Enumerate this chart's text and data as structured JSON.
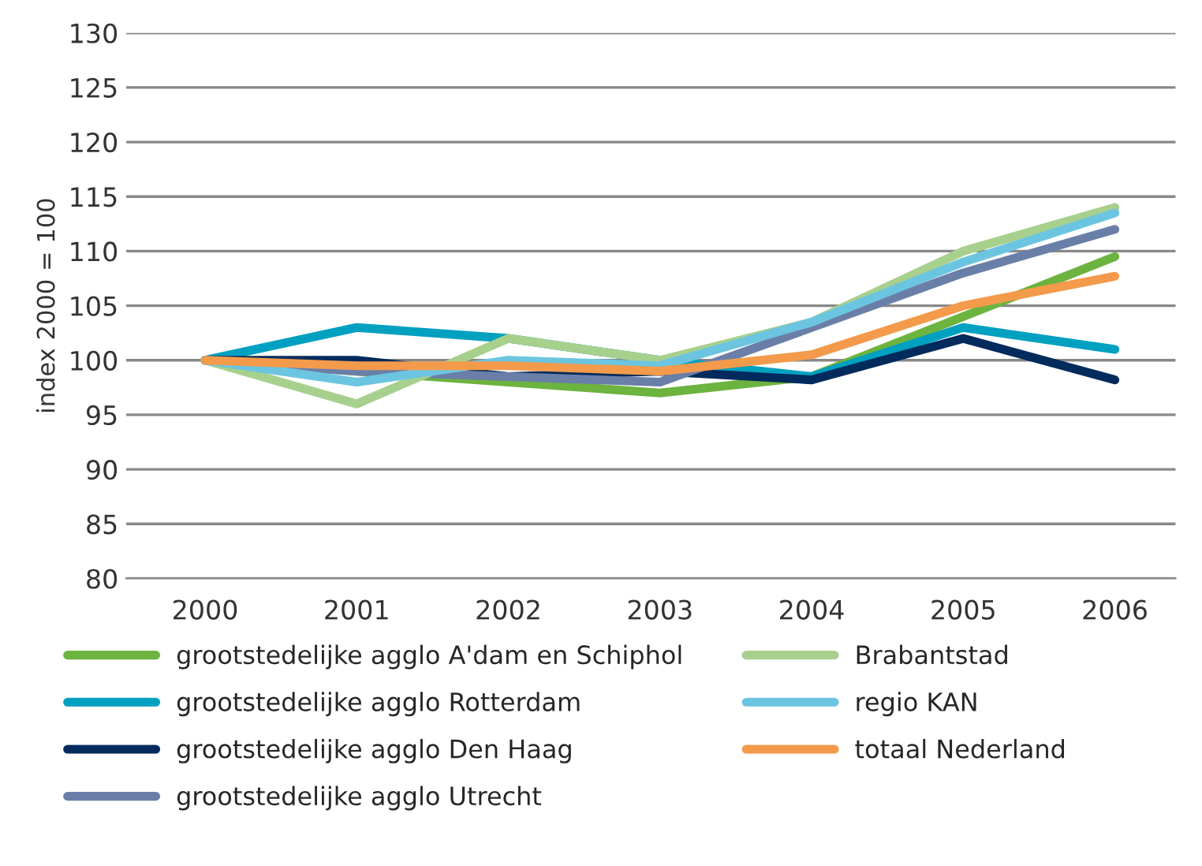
{
  "chart_data": {
    "type": "line",
    "ylabel": "index 2000 = 100",
    "categories": [
      "2000",
      "2001",
      "2002",
      "2003",
      "2004",
      "2005",
      "2006"
    ],
    "series": [
      {
        "name": "grootstedelijke agglo A'dam en Schiphol",
        "color": "#6db33f",
        "values": [
          100,
          99,
          98,
          97,
          98.5,
          104,
          109.5
        ]
      },
      {
        "name": "grootstedelijke agglo Rotterdam",
        "color": "#00a0c0",
        "values": [
          100,
          103,
          102,
          100,
          98.5,
          103,
          101
        ]
      },
      {
        "name": "grootstedelijke agglo Den Haag",
        "color": "#002b5c",
        "values": [
          100,
          100,
          98.5,
          99,
          98.2,
          102,
          98.2
        ]
      },
      {
        "name": "grootstedelijke agglo Utrecht",
        "color": "#6a7fa8",
        "values": [
          100,
          99,
          98.5,
          98,
          103,
          108,
          112
        ]
      },
      {
        "name": "Brabantstad",
        "color": "#a8d08d",
        "values": [
          100,
          96,
          102,
          100,
          103.5,
          110,
          114
        ]
      },
      {
        "name": "regio KAN",
        "color": "#6cc5e0",
        "values": [
          100,
          98,
          100,
          99.5,
          103.5,
          109,
          113.5
        ]
      },
      {
        "name": "totaal Nederland",
        "color": "#f39a4b",
        "values": [
          100,
          99.5,
          99.5,
          99,
          100.5,
          105,
          107.7
        ]
      }
    ],
    "ylim": [
      80,
      130
    ],
    "yticks": [
      80,
      85,
      90,
      95,
      100,
      105,
      110,
      115,
      120,
      125,
      130
    ],
    "grid": "y",
    "legend": "bottom",
    "marker": "none",
    "line_style": "solid"
  }
}
